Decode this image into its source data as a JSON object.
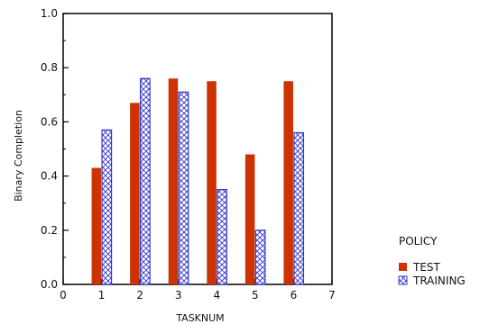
{
  "chart_data": {
    "type": "bar",
    "title": "",
    "xlabel": "TASKNUM",
    "ylabel": "Binary Completion",
    "xlim": [
      0,
      7
    ],
    "ylim": [
      0.0,
      1.0
    ],
    "x_ticks": [
      "0",
      "1",
      "2",
      "3",
      "4",
      "5",
      "6",
      "7"
    ],
    "y_ticks": [
      "0.0",
      "0.2",
      "0.4",
      "0.6",
      "0.8",
      "1.0"
    ],
    "categories": [
      1,
      2,
      3,
      4,
      5,
      6
    ],
    "series": [
      {
        "name": "TEST",
        "values": [
          0.43,
          0.67,
          0.76,
          0.75,
          0.48,
          0.75
        ],
        "color": "#cc3300",
        "pattern": "solid"
      },
      {
        "name": "TRAINING",
        "values": [
          0.57,
          0.76,
          0.71,
          0.35,
          0.2,
          0.56
        ],
        "color": "#3333cc",
        "pattern": "crosshatch"
      }
    ],
    "legend": {
      "title": "POLICY",
      "placement": "bottom-right"
    },
    "grid": false
  }
}
